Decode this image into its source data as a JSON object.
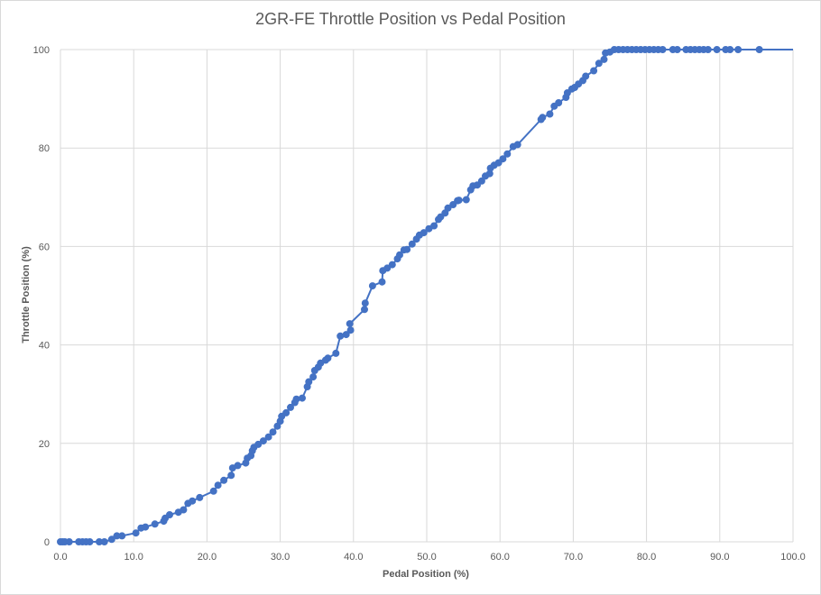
{
  "colors": {
    "series": "#4472c4",
    "grid": "#d9d9d9",
    "text": "#595959"
  },
  "chart_data": {
    "type": "scatter",
    "title": "2GR-FE Throttle Position vs Pedal Position",
    "xlabel": "Pedal Position (%)",
    "ylabel": "Throttle Position (%)",
    "xlim": [
      0,
      100
    ],
    "ylim": [
      0,
      100
    ],
    "x_ticks": [
      "0.0",
      "10.0",
      "20.0",
      "30.0",
      "40.0",
      "50.0",
      "60.0",
      "70.0",
      "80.0",
      "90.0",
      "100.0"
    ],
    "y_ticks": [
      "0",
      "20",
      "40",
      "60",
      "80",
      "100"
    ],
    "grid": true,
    "line": true,
    "markers": true,
    "series": [
      {
        "points": [
          [
            0,
            0
          ],
          [
            0.3,
            0
          ],
          [
            0.6,
            0
          ],
          [
            1.2,
            0
          ],
          [
            2.5,
            0
          ],
          [
            3,
            0
          ],
          [
            3.5,
            0
          ],
          [
            4,
            0
          ],
          [
            5.3,
            0
          ],
          [
            6,
            0
          ],
          [
            7,
            0.5
          ],
          [
            7.7,
            1.2
          ],
          [
            8.4,
            1.2
          ],
          [
            10.3,
            1.8
          ],
          [
            11,
            2.8
          ],
          [
            11.6,
            3
          ],
          [
            12.9,
            3.6
          ],
          [
            14.1,
            4.2
          ],
          [
            14.3,
            4.8
          ],
          [
            14.9,
            5.5
          ],
          [
            16.1,
            6
          ],
          [
            16.8,
            6.5
          ],
          [
            17.4,
            7.8
          ],
          [
            18,
            8.3
          ],
          [
            19,
            9
          ],
          [
            20.9,
            10.3
          ],
          [
            21.5,
            11.5
          ],
          [
            22.3,
            12.5
          ],
          [
            23.3,
            13.5
          ],
          [
            23.5,
            15
          ],
          [
            24.2,
            15.5
          ],
          [
            25.3,
            16
          ],
          [
            25.5,
            17
          ],
          [
            26,
            17.5
          ],
          [
            26.2,
            18.5
          ],
          [
            26.4,
            19.2
          ],
          [
            27,
            19.8
          ],
          [
            27.7,
            20.5
          ],
          [
            28.4,
            21.3
          ],
          [
            29,
            22.3
          ],
          [
            29.6,
            23.5
          ],
          [
            30,
            24.5
          ],
          [
            30.2,
            25.5
          ],
          [
            30.8,
            26.2
          ],
          [
            31.4,
            27.3
          ],
          [
            32,
            28.3
          ],
          [
            32.2,
            29
          ],
          [
            33,
            29.2
          ],
          [
            33.7,
            31.5
          ],
          [
            33.9,
            32.5
          ],
          [
            34.5,
            33.5
          ],
          [
            34.7,
            34.8
          ],
          [
            35.2,
            35.5
          ],
          [
            35.5,
            36.3
          ],
          [
            36.2,
            36.9
          ],
          [
            36.5,
            37.3
          ],
          [
            37.6,
            38.3
          ],
          [
            38.2,
            41.8
          ],
          [
            39,
            42.1
          ],
          [
            39.6,
            43
          ],
          [
            39.5,
            44.3
          ],
          [
            41.5,
            47.2
          ],
          [
            41.6,
            48.5
          ],
          [
            42.6,
            52
          ],
          [
            43.9,
            52.8
          ],
          [
            44,
            55.1
          ],
          [
            44.6,
            55.6
          ],
          [
            45.3,
            56.3
          ],
          [
            46,
            57.5
          ],
          [
            46.3,
            58.3
          ],
          [
            46.9,
            59.3
          ],
          [
            47.3,
            59.4
          ],
          [
            48,
            60.5
          ],
          [
            48.6,
            61.5
          ],
          [
            49,
            62.3
          ],
          [
            49.6,
            62.8
          ],
          [
            50.3,
            63.6
          ],
          [
            51,
            64.2
          ],
          [
            51.6,
            65.5
          ],
          [
            51.9,
            66
          ],
          [
            52.5,
            66.8
          ],
          [
            52.9,
            67.8
          ],
          [
            53.6,
            68.5
          ],
          [
            54.2,
            69.3
          ],
          [
            54.4,
            69.4
          ],
          [
            55.4,
            69.5
          ],
          [
            56,
            71.5
          ],
          [
            56.3,
            72.3
          ],
          [
            56.9,
            72.5
          ],
          [
            57.5,
            73.3
          ],
          [
            58,
            74.3
          ],
          [
            58.6,
            74.8
          ],
          [
            58.7,
            75.9
          ],
          [
            59.2,
            76.5
          ],
          [
            59.8,
            77
          ],
          [
            60.4,
            77.8
          ],
          [
            61,
            78.8
          ],
          [
            61.8,
            80.3
          ],
          [
            62.4,
            80.7
          ],
          [
            65.6,
            85.8
          ],
          [
            65.8,
            86.2
          ],
          [
            66.8,
            86.9
          ],
          [
            67.4,
            88.5
          ],
          [
            68,
            89.2
          ],
          [
            69,
            90.3
          ],
          [
            69.2,
            91.2
          ],
          [
            69.8,
            92
          ],
          [
            70.2,
            92.3
          ],
          [
            70.7,
            93
          ],
          [
            71.3,
            93.7
          ],
          [
            71.7,
            94.6
          ],
          [
            72.8,
            95.7
          ],
          [
            73.5,
            97.2
          ],
          [
            74.2,
            98
          ],
          [
            74.4,
            99.3
          ],
          [
            75,
            99.5
          ],
          [
            75.6,
            100
          ],
          [
            76.2,
            100
          ],
          [
            76.8,
            100
          ],
          [
            77.4,
            100
          ],
          [
            78,
            100
          ],
          [
            78.6,
            100
          ],
          [
            79.2,
            100
          ],
          [
            79.8,
            100
          ],
          [
            80.4,
            100
          ],
          [
            81,
            100
          ],
          [
            81.6,
            100
          ],
          [
            82.2,
            100
          ],
          [
            83.6,
            100
          ],
          [
            84.2,
            100
          ],
          [
            85.4,
            100
          ],
          [
            86,
            100
          ],
          [
            86.6,
            100
          ],
          [
            87.2,
            100
          ],
          [
            87.8,
            100
          ],
          [
            88.4,
            100
          ],
          [
            89.6,
            100
          ],
          [
            90.8,
            100
          ],
          [
            91.4,
            100
          ],
          [
            92.5,
            100
          ],
          [
            95.4,
            100
          ],
          [
            100,
            100
          ]
        ]
      }
    ]
  }
}
